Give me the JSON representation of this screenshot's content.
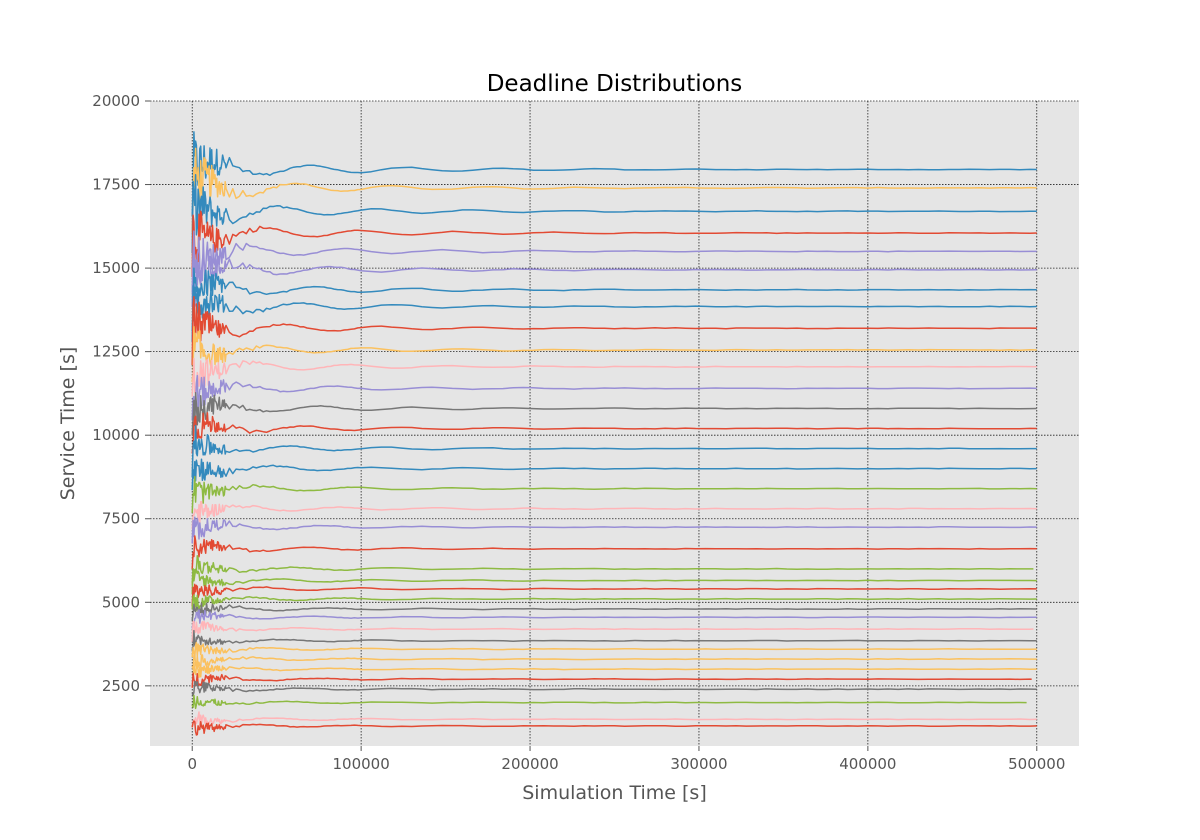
{
  "chart_data": {
    "type": "line",
    "title": "Deadline Distributions",
    "xlabel": "Simulation Time [s]",
    "ylabel": "Service Time [s]",
    "xlim": [
      -25000,
      525000
    ],
    "ylim": [
      700,
      20000
    ],
    "xticks": [
      0,
      100000,
      200000,
      300000,
      400000,
      500000
    ],
    "xtick_labels": [
      "0",
      "100000",
      "200000",
      "300000",
      "400000",
      "500000"
    ],
    "yticks": [
      2500,
      5000,
      7500,
      10000,
      12500,
      15000,
      17500,
      20000
    ],
    "ytick_labels": [
      "2500",
      "5000",
      "7500",
      "10000",
      "12500",
      "15000",
      "17500",
      "20000"
    ],
    "grid": true,
    "background": "#e5e5e5",
    "x_end": 500000,
    "series": [
      {
        "color": "#348abd",
        "final": 17950,
        "end": 500000
      },
      {
        "color": "#fbc15e",
        "final": 17400,
        "end": 500000
      },
      {
        "color": "#348abd",
        "final": 16700,
        "end": 500000
      },
      {
        "color": "#e24a33",
        "final": 16050,
        "end": 500000
      },
      {
        "color": "#988ed5",
        "final": 15500,
        "end": 500000
      },
      {
        "color": "#988ed5",
        "final": 14950,
        "end": 500000
      },
      {
        "color": "#348abd",
        "final": 14350,
        "end": 500000
      },
      {
        "color": "#348abd",
        "final": 13850,
        "end": 500000
      },
      {
        "color": "#e24a33",
        "final": 13200,
        "end": 500000
      },
      {
        "color": "#fbc15e",
        "final": 12550,
        "end": 500000
      },
      {
        "color": "#ffb5b8",
        "final": 12050,
        "end": 500000
      },
      {
        "color": "#988ed5",
        "final": 11400,
        "end": 500000
      },
      {
        "color": "#777777",
        "final": 10800,
        "end": 500000
      },
      {
        "color": "#e24a33",
        "final": 10200,
        "end": 500000
      },
      {
        "color": "#348abd",
        "final": 9600,
        "end": 500000
      },
      {
        "color": "#348abd",
        "final": 9000,
        "end": 500000
      },
      {
        "color": "#8eba42",
        "final": 8400,
        "end": 500000
      },
      {
        "color": "#ffb5b8",
        "final": 7800,
        "end": 500000
      },
      {
        "color": "#988ed5",
        "final": 7250,
        "end": 500000
      },
      {
        "color": "#e24a33",
        "final": 6600,
        "end": 500000
      },
      {
        "color": "#8eba42",
        "final": 6000,
        "end": 498000
      },
      {
        "color": "#8eba42",
        "final": 5650,
        "end": 500000
      },
      {
        "color": "#e24a33",
        "final": 5400,
        "end": 500000
      },
      {
        "color": "#8eba42",
        "final": 5100,
        "end": 500000
      },
      {
        "color": "#777777",
        "final": 4800,
        "end": 500000
      },
      {
        "color": "#988ed5",
        "final": 4550,
        "end": 500000
      },
      {
        "color": "#ffb5b8",
        "final": 4200,
        "end": 498000
      },
      {
        "color": "#777777",
        "final": 3850,
        "end": 500000
      },
      {
        "color": "#fbc15e",
        "final": 3600,
        "end": 500000
      },
      {
        "color": "#fbc15e",
        "final": 3300,
        "end": 500000
      },
      {
        "color": "#fbc15e",
        "final": 3000,
        "end": 500000
      },
      {
        "color": "#e24a33",
        "final": 2700,
        "end": 497000
      },
      {
        "color": "#777777",
        "final": 2400,
        "end": 500000
      },
      {
        "color": "#8eba42",
        "final": 2000,
        "end": 494000
      },
      {
        "color": "#ffb5b8",
        "final": 1500,
        "end": 500000
      },
      {
        "color": "#e24a33",
        "final": 1300,
        "end": 500000
      }
    ]
  }
}
